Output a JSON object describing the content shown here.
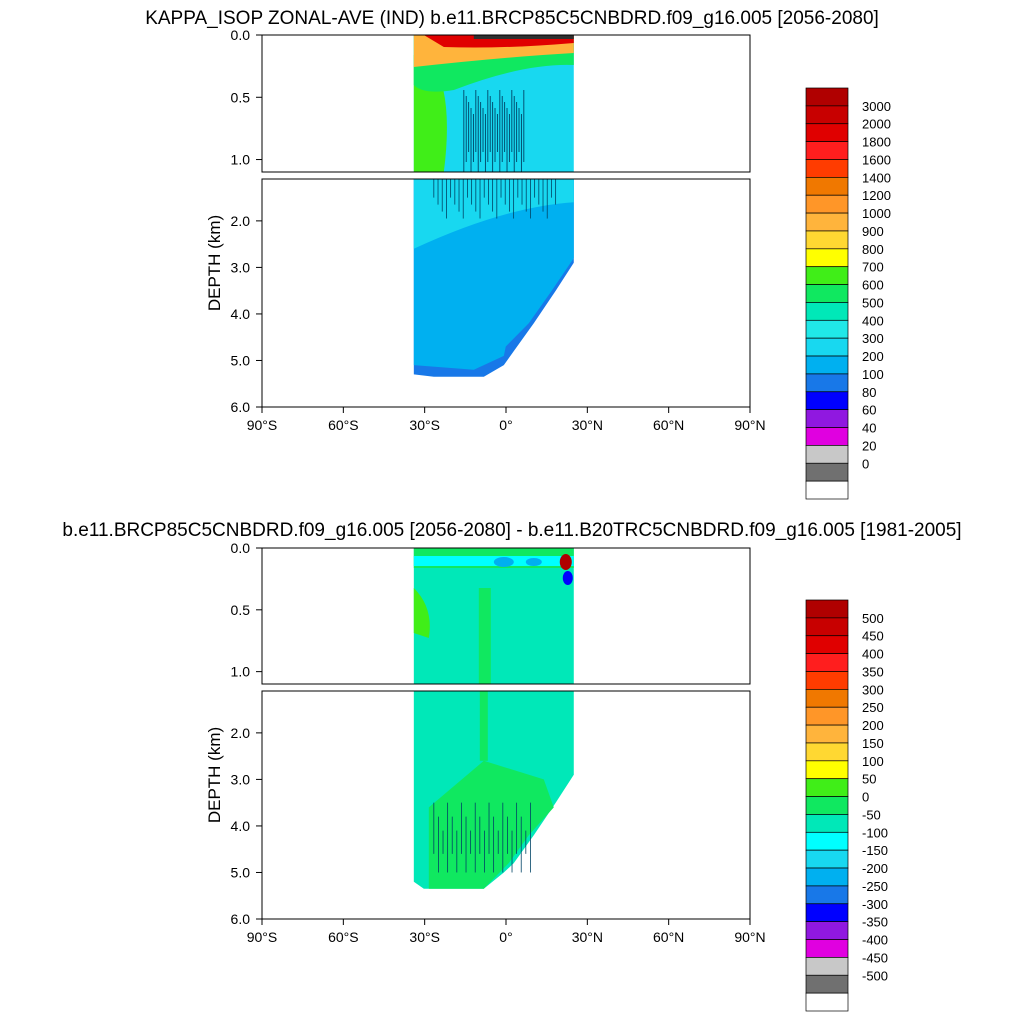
{
  "chart_data": [
    {
      "type": "heatmap",
      "title": "KAPPA_ISOP ZONAL-AVE (IND) b.e11.BRCP85C5CNBDRD.f09_g16.005 [2056-2080]",
      "xlabel": "",
      "ylabel": "DEPTH (km)",
      "x_tick_labels": [
        "90°S",
        "60°S",
        "30°S",
        "0°",
        "30°N",
        "60°N",
        "90°N"
      ],
      "x_ticks": [
        -90,
        -60,
        -30,
        0,
        30,
        60,
        90
      ],
      "xlim": [
        -90,
        90
      ],
      "y_upper_tick_labels": [
        "0.0",
        "0.5",
        "1.0"
      ],
      "y_upper_ticks": [
        0.0,
        0.5,
        1.0
      ],
      "y_upper_range": [
        0.0,
        1.1
      ],
      "y_lower_tick_labels": [
        "2.0",
        "3.0",
        "4.0",
        "5.0",
        "6.0"
      ],
      "y_lower_ticks": [
        2.0,
        3.0,
        4.0,
        5.0,
        6.0
      ],
      "y_lower_range": [
        1.1,
        6.0
      ],
      "colorbar_labels": [
        "3000",
        "2000",
        "1800",
        "1600",
        "1400",
        "1200",
        "1000",
        "900",
        "800",
        "700",
        "600",
        "500",
        "400",
        "300",
        "200",
        "100",
        "80",
        "60",
        "40",
        "20",
        "0"
      ],
      "colorbar_colors": [
        "#b00000",
        "#c80000",
        "#e00000",
        "#ff1e1e",
        "#ff3c00",
        "#f07800",
        "#ff9628",
        "#ffb43c",
        "#ffd832",
        "#ffff00",
        "#40ee18",
        "#10e860",
        "#00e8b8",
        "#20e8e8",
        "#18d8f0",
        "#00b0f0",
        "#1878e8",
        "#0000ff",
        "#9018e0",
        "#e000e0",
        "#c8c8c8",
        "#707070",
        "#ffffff"
      ],
      "ocean_lat_range": [
        -34,
        25
      ],
      "ocean_max_depth": 5.35,
      "field_summary": {
        "surface_max": 3000,
        "interior_typical": 300,
        "deep_typical": 200
      }
    },
    {
      "type": "heatmap",
      "title": "b.e11.BRCP85C5CNBDRD.f09_g16.005 [2056-2080] - b.e11.B20TRC5CNBDRD.f09_g16.005 [1981-2005]",
      "xlabel": "",
      "ylabel": "DEPTH (km)",
      "x_tick_labels": [
        "90°S",
        "60°S",
        "30°S",
        "0°",
        "30°N",
        "60°N",
        "90°N"
      ],
      "x_ticks": [
        -90,
        -60,
        -30,
        0,
        30,
        60,
        90
      ],
      "xlim": [
        -90,
        90
      ],
      "y_upper_tick_labels": [
        "0.0",
        "0.5",
        "1.0"
      ],
      "y_upper_ticks": [
        0.0,
        0.5,
        1.0
      ],
      "y_upper_range": [
        0.0,
        1.1
      ],
      "y_lower_tick_labels": [
        "2.0",
        "3.0",
        "4.0",
        "5.0",
        "6.0"
      ],
      "y_lower_ticks": [
        2.0,
        3.0,
        4.0,
        5.0,
        6.0
      ],
      "y_lower_range": [
        1.1,
        6.0
      ],
      "colorbar_labels": [
        "500",
        "450",
        "400",
        "350",
        "300",
        "250",
        "200",
        "150",
        "100",
        "50",
        "0",
        "-50",
        "-100",
        "-150",
        "-200",
        "-250",
        "-300",
        "-350",
        "-400",
        "-450",
        "-500"
      ],
      "colorbar_colors": [
        "#b00000",
        "#c80000",
        "#e00000",
        "#ff1e1e",
        "#ff3c00",
        "#f07800",
        "#ff9628",
        "#ffb43c",
        "#ffd832",
        "#ffff00",
        "#40ee18",
        "#10e860",
        "#00e8b8",
        "#00ffff",
        "#18d8f0",
        "#00b0f0",
        "#1878e8",
        "#0000ff",
        "#9018e0",
        "#e000e0",
        "#c8c8c8",
        "#707070",
        "#ffffff"
      ],
      "ocean_lat_range": [
        -34,
        25
      ],
      "ocean_max_depth": 5.35,
      "field_summary": {
        "surface_range": [
          -300,
          500
        ],
        "interior_typical": -25,
        "deep_typical": 25
      }
    }
  ]
}
